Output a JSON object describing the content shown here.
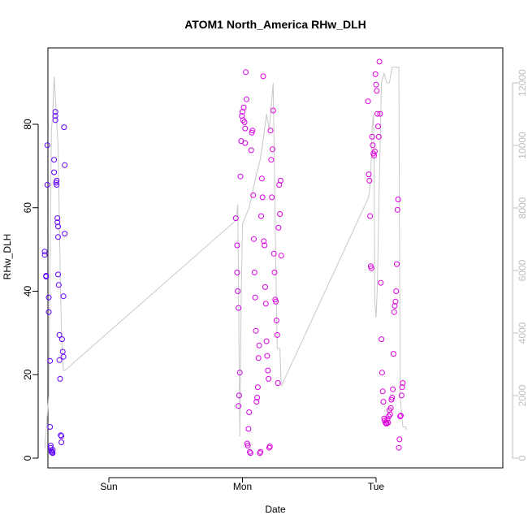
{
  "chart_data": {
    "type": "scatter",
    "title": "ATOM1 North_America RHw_DLH",
    "xlabel": "Date",
    "ylabel": "RHw_DLH",
    "x_ticks": [
      "Sun",
      "Mon",
      "Tue"
    ],
    "y_ticks": [
      "0",
      "20",
      "40",
      "60",
      "80"
    ],
    "y2_ticks": [
      "0",
      "2000",
      "4000",
      "6000",
      "8000",
      "10000",
      "12000"
    ],
    "ylim": [
      0,
      92
    ],
    "y2lim": [
      0,
      12500
    ],
    "grid": false,
    "legend": "none",
    "x_unit": "days since Sat 00:00",
    "colors": {
      "points_start": "#5b00ff",
      "points_end": "#e000e0",
      "line": "#c8c8c8",
      "right_axis": "#bdbdbd"
    },
    "series": [
      {
        "type": "scatter",
        "points": [
          [
            0.52,
            49.5
          ],
          [
            0.52,
            48.7
          ],
          [
            0.53,
            43.7
          ],
          [
            0.53,
            43.5
          ],
          [
            0.54,
            75
          ],
          [
            0.54,
            65.5
          ],
          [
            0.55,
            38.5
          ],
          [
            0.55,
            35
          ],
          [
            0.56,
            23.3
          ],
          [
            0.56,
            7.5
          ],
          [
            0.565,
            3
          ],
          [
            0.565,
            2.5
          ],
          [
            0.57,
            1.8
          ],
          [
            0.57,
            1.5
          ],
          [
            0.575,
            1.3
          ],
          [
            0.58,
            1.2
          ],
          [
            0.58,
            2
          ],
          [
            0.59,
            68.5
          ],
          [
            0.59,
            71.5
          ],
          [
            0.6,
            81
          ],
          [
            0.6,
            82
          ],
          [
            0.6,
            83
          ],
          [
            0.605,
            66
          ],
          [
            0.61,
            65.5
          ],
          [
            0.61,
            66.5
          ],
          [
            0.615,
            56.5
          ],
          [
            0.615,
            57.5
          ],
          [
            0.62,
            55.5
          ],
          [
            0.62,
            53
          ],
          [
            0.62,
            44
          ],
          [
            0.625,
            41.5
          ],
          [
            0.63,
            29.5
          ],
          [
            0.63,
            23.5
          ],
          [
            0.635,
            19
          ],
          [
            0.64,
            5.5
          ],
          [
            0.645,
            5.3
          ],
          [
            0.645,
            3.8
          ],
          [
            0.65,
            28.5
          ],
          [
            0.655,
            25.5
          ],
          [
            0.66,
            24.3
          ],
          [
            0.66,
            38.8
          ],
          [
            0.665,
            79.3
          ],
          [
            0.67,
            70.2
          ],
          [
            0.67,
            53.8
          ],
          [
            1.95,
            57.5
          ],
          [
            1.96,
            51
          ],
          [
            1.96,
            44.5
          ],
          [
            1.965,
            40
          ],
          [
            1.97,
            36
          ],
          [
            1.97,
            12.5
          ],
          [
            1.975,
            15
          ],
          [
            1.98,
            20.5
          ],
          [
            1.985,
            67.5
          ],
          [
            1.99,
            76
          ],
          [
            1.995,
            82
          ],
          [
            2.0,
            83
          ],
          [
            2.005,
            81
          ],
          [
            2.01,
            84
          ],
          [
            2.015,
            80.5
          ],
          [
            2.02,
            79
          ],
          [
            2.02,
            75.5
          ],
          [
            2.025,
            92.5
          ],
          [
            2.03,
            86
          ],
          [
            2.035,
            3.5
          ],
          [
            2.04,
            3
          ],
          [
            2.045,
            7
          ],
          [
            2.05,
            11
          ],
          [
            2.055,
            1.5
          ],
          [
            2.06,
            1.2
          ],
          [
            2.065,
            73.8
          ],
          [
            2.07,
            78
          ],
          [
            2.075,
            78.5
          ],
          [
            2.08,
            63
          ],
          [
            2.085,
            52.5
          ],
          [
            2.09,
            44.5
          ],
          [
            2.095,
            38.5
          ],
          [
            2.1,
            30.5
          ],
          [
            2.105,
            13.5
          ],
          [
            2.11,
            14.5
          ],
          [
            2.115,
            17
          ],
          [
            2.12,
            24
          ],
          [
            2.125,
            27
          ],
          [
            2.13,
            1.2
          ],
          [
            2.135,
            1.5
          ],
          [
            2.14,
            58
          ],
          [
            2.145,
            67
          ],
          [
            2.15,
            62.5
          ],
          [
            2.155,
            91.5
          ],
          [
            2.16,
            52
          ],
          [
            2.165,
            51
          ],
          [
            2.17,
            41
          ],
          [
            2.175,
            37
          ],
          [
            2.18,
            28
          ],
          [
            2.185,
            24.5
          ],
          [
            2.19,
            21
          ],
          [
            2.195,
            19
          ],
          [
            2.2,
            2.5
          ],
          [
            2.205,
            2.8
          ],
          [
            2.21,
            78.5
          ],
          [
            2.215,
            71.5
          ],
          [
            2.22,
            62.5
          ],
          [
            2.225,
            74
          ],
          [
            2.23,
            83.3
          ],
          [
            2.235,
            49
          ],
          [
            2.24,
            44.5
          ],
          [
            2.245,
            38
          ],
          [
            2.25,
            37.5
          ],
          [
            2.255,
            33
          ],
          [
            2.26,
            29.5
          ],
          [
            2.265,
            18
          ],
          [
            2.27,
            55.2
          ],
          [
            2.275,
            65.5
          ],
          [
            2.28,
            58.5
          ],
          [
            2.285,
            66.5
          ],
          [
            2.29,
            48.5
          ],
          [
            2.94,
            85.5
          ],
          [
            2.945,
            68
          ],
          [
            2.95,
            66.5
          ],
          [
            2.955,
            58
          ],
          [
            2.96,
            46
          ],
          [
            2.965,
            45.5
          ],
          [
            2.97,
            77
          ],
          [
            2.975,
            75
          ],
          [
            2.98,
            73
          ],
          [
            2.985,
            72.5
          ],
          [
            2.99,
            73.5
          ],
          [
            2.995,
            92
          ],
          [
            3.0,
            89.5
          ],
          [
            3.005,
            88
          ],
          [
            3.01,
            82.5
          ],
          [
            3.015,
            79.5
          ],
          [
            3.02,
            77
          ],
          [
            3.025,
            95
          ],
          [
            3.03,
            82.5
          ],
          [
            3.035,
            42
          ],
          [
            3.04,
            28.5
          ],
          [
            3.045,
            20.5
          ],
          [
            3.05,
            16
          ],
          [
            3.055,
            13.5
          ],
          [
            3.06,
            9.5
          ],
          [
            3.065,
            9
          ],
          [
            3.07,
            8.5
          ],
          [
            3.075,
            8.3
          ],
          [
            3.08,
            8.3
          ],
          [
            3.085,
            9.3
          ],
          [
            3.09,
            8.5
          ],
          [
            3.095,
            10
          ],
          [
            3.1,
            11.5
          ],
          [
            3.105,
            10.5
          ],
          [
            3.11,
            12
          ],
          [
            3.115,
            14
          ],
          [
            3.12,
            14.5
          ],
          [
            3.125,
            16.5
          ],
          [
            3.13,
            25
          ],
          [
            3.135,
            35
          ],
          [
            3.14,
            36.5
          ],
          [
            3.145,
            37.5
          ],
          [
            3.15,
            40
          ],
          [
            3.155,
            46.5
          ],
          [
            3.16,
            59.5
          ],
          [
            3.165,
            62
          ],
          [
            3.17,
            2.5
          ],
          [
            3.175,
            4.5
          ],
          [
            3.18,
            10
          ],
          [
            3.185,
            10.2
          ],
          [
            3.19,
            15
          ],
          [
            3.195,
            17
          ],
          [
            3.2,
            18
          ]
        ]
      },
      {
        "type": "line",
        "axis": "right",
        "points": [
          [
            0.52,
            300
          ],
          [
            0.53,
            800
          ],
          [
            0.55,
            2000
          ],
          [
            0.56,
            6000
          ],
          [
            0.57,
            10500
          ],
          [
            0.58,
            11000
          ],
          [
            0.59,
            12200
          ],
          [
            0.6,
            11500
          ],
          [
            0.62,
            10000
          ],
          [
            0.63,
            7500
          ],
          [
            0.64,
            5000
          ],
          [
            0.65,
            3500
          ],
          [
            0.66,
            2800
          ],
          [
            0.67,
            2800
          ],
          [
            1.95,
            7600
          ],
          [
            1.96,
            7900
          ],
          [
            1.965,
            8100
          ],
          [
            1.97,
            5500
          ],
          [
            1.98,
            700
          ],
          [
            1.99,
            5000
          ],
          [
            2.0,
            7500
          ],
          [
            2.05,
            8000
          ],
          [
            2.06,
            8200
          ],
          [
            2.1,
            9000
          ],
          [
            2.13,
            9500
          ],
          [
            2.15,
            10000
          ],
          [
            2.18,
            11000
          ],
          [
            2.2,
            10500
          ],
          [
            2.22,
            11500
          ],
          [
            2.23,
            12000
          ],
          [
            2.24,
            9000
          ],
          [
            2.25,
            6000
          ],
          [
            2.26,
            3500
          ],
          [
            2.27,
            3500
          ],
          [
            2.28,
            3500
          ],
          [
            2.29,
            2300
          ],
          [
            2.94,
            8300
          ],
          [
            2.95,
            8500
          ],
          [
            2.96,
            9000
          ],
          [
            2.97,
            10500
          ],
          [
            2.98,
            11000
          ],
          [
            2.985,
            9800
          ],
          [
            2.99,
            5000
          ],
          [
            3.0,
            4500
          ],
          [
            3.01,
            5500
          ],
          [
            3.02,
            8000
          ],
          [
            3.03,
            10000
          ],
          [
            3.04,
            12000
          ],
          [
            3.06,
            12300
          ],
          [
            3.08,
            12000
          ],
          [
            3.1,
            12000
          ],
          [
            3.12,
            12500
          ],
          [
            3.14,
            12500
          ],
          [
            3.16,
            12500
          ],
          [
            3.17,
            12500
          ],
          [
            3.18,
            2000
          ],
          [
            3.19,
            1500
          ],
          [
            3.2,
            1000
          ],
          [
            3.22,
            1000
          ],
          [
            3.23,
            900
          ]
        ]
      }
    ]
  }
}
